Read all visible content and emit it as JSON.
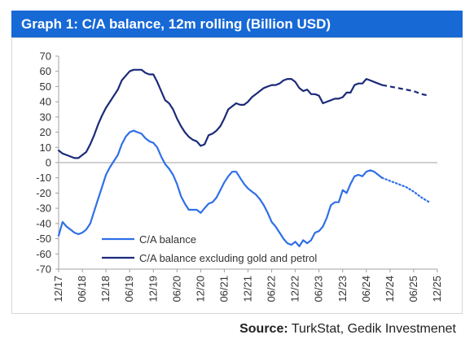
{
  "title": "Graph 1: C/A balance, 12m rolling (Billion USD)",
  "source_label": "Source:",
  "source_text": "TurkStat, Gedik Investmenet",
  "colors": {
    "title_bg": "#1769d6",
    "ca_balance": "#2f6fe8",
    "ca_ex_gold": "#1b2a78"
  },
  "chart_data": {
    "type": "line",
    "title": "Graph 1: C/A balance, 12m rolling (Billion USD)",
    "xlabel": "",
    "ylabel": "",
    "ylim": [
      -70,
      70
    ],
    "yticks": [
      70,
      60,
      50,
      40,
      30,
      20,
      10,
      0,
      -10,
      -20,
      -30,
      -40,
      -50,
      -60,
      -70
    ],
    "x_ticks": [
      "12/17",
      "06/18",
      "12/18",
      "06/19",
      "12/19",
      "06/20",
      "12/20",
      "06/21",
      "12/21",
      "06/22",
      "12/22",
      "06/23",
      "12/23",
      "06/24",
      "12/24",
      "06/25",
      "12/25"
    ],
    "x_unit": "months since 12/17",
    "grid": false,
    "legend": "bottom-center",
    "series": [
      {
        "name": "C/A balance",
        "style": "solid",
        "points": [
          [
            0,
            -48
          ],
          [
            1,
            -39
          ],
          [
            2,
            -42
          ],
          [
            3,
            -44
          ],
          [
            4,
            -46
          ],
          [
            5,
            -47
          ],
          [
            6,
            -46
          ],
          [
            7,
            -44
          ],
          [
            8,
            -40
          ],
          [
            9,
            -32
          ],
          [
            10,
            -24
          ],
          [
            11,
            -16
          ],
          [
            12,
            -8
          ],
          [
            13,
            -3
          ],
          [
            14,
            1
          ],
          [
            15,
            5
          ],
          [
            16,
            12
          ],
          [
            17,
            17
          ],
          [
            18,
            20
          ],
          [
            19,
            21
          ],
          [
            20,
            20
          ],
          [
            21,
            19
          ],
          [
            22,
            16
          ],
          [
            23,
            14
          ],
          [
            24,
            13
          ],
          [
            25,
            10
          ],
          [
            26,
            4
          ],
          [
            27,
            -1
          ],
          [
            28,
            -4
          ],
          [
            29,
            -8
          ],
          [
            30,
            -14
          ],
          [
            31,
            -22
          ],
          [
            32,
            -27
          ],
          [
            33,
            -31
          ],
          [
            34,
            -31
          ],
          [
            35,
            -31
          ],
          [
            36,
            -33
          ],
          [
            37,
            -30
          ],
          [
            38,
            -27
          ],
          [
            39,
            -26
          ],
          [
            40,
            -23
          ],
          [
            41,
            -18
          ],
          [
            42,
            -13
          ],
          [
            43,
            -9
          ],
          [
            44,
            -6
          ],
          [
            45,
            -6
          ],
          [
            46,
            -10
          ],
          [
            47,
            -14
          ],
          [
            48,
            -17
          ],
          [
            49,
            -19
          ],
          [
            50,
            -21
          ],
          [
            51,
            -24
          ],
          [
            52,
            -28
          ],
          [
            53,
            -33
          ],
          [
            54,
            -39
          ],
          [
            55,
            -42
          ],
          [
            56,
            -46
          ],
          [
            57,
            -50
          ],
          [
            58,
            -53
          ],
          [
            59,
            -54
          ],
          [
            60,
            -52
          ],
          [
            61,
            -55
          ],
          [
            62,
            -51
          ],
          [
            63,
            -53
          ],
          [
            64,
            -51
          ],
          [
            65,
            -46
          ],
          [
            66,
            -45
          ],
          [
            67,
            -42
          ],
          [
            68,
            -36
          ],
          [
            69,
            -28
          ],
          [
            70,
            -26
          ],
          [
            71,
            -26
          ],
          [
            72,
            -18
          ],
          [
            73,
            -20
          ],
          [
            74,
            -14
          ],
          [
            75,
            -9
          ],
          [
            76,
            -8
          ],
          [
            77,
            -9
          ],
          [
            78,
            -6
          ],
          [
            79,
            -5
          ],
          [
            80,
            -6
          ],
          [
            81,
            -8
          ],
          [
            82,
            -10
          ]
        ]
      },
      {
        "name": "C/A balance",
        "style": "dotted-forecast",
        "points": [
          [
            82,
            -10
          ],
          [
            84,
            -12
          ],
          [
            86,
            -14
          ],
          [
            88,
            -16
          ],
          [
            90,
            -19
          ],
          [
            92,
            -23
          ],
          [
            94,
            -26
          ]
        ]
      },
      {
        "name": "C/A balance excluding gold and petrol",
        "style": "solid",
        "points": [
          [
            0,
            8
          ],
          [
            1,
            6
          ],
          [
            2,
            5
          ],
          [
            3,
            4
          ],
          [
            4,
            3
          ],
          [
            5,
            3
          ],
          [
            6,
            5
          ],
          [
            7,
            7
          ],
          [
            8,
            12
          ],
          [
            9,
            18
          ],
          [
            10,
            25
          ],
          [
            11,
            31
          ],
          [
            12,
            36
          ],
          [
            13,
            40
          ],
          [
            14,
            44
          ],
          [
            15,
            48
          ],
          [
            16,
            54
          ],
          [
            17,
            57
          ],
          [
            18,
            60
          ],
          [
            19,
            61
          ],
          [
            20,
            61
          ],
          [
            21,
            61
          ],
          [
            22,
            59
          ],
          [
            23,
            58
          ],
          [
            24,
            58
          ],
          [
            25,
            53
          ],
          [
            26,
            47
          ],
          [
            27,
            41
          ],
          [
            28,
            39
          ],
          [
            29,
            35
          ],
          [
            30,
            29
          ],
          [
            31,
            24
          ],
          [
            32,
            20
          ],
          [
            33,
            17
          ],
          [
            34,
            15
          ],
          [
            35,
            14
          ],
          [
            36,
            11
          ],
          [
            37,
            12
          ],
          [
            38,
            18
          ],
          [
            39,
            19
          ],
          [
            40,
            21
          ],
          [
            41,
            24
          ],
          [
            42,
            29
          ],
          [
            43,
            35
          ],
          [
            44,
            37
          ],
          [
            45,
            39
          ],
          [
            46,
            38
          ],
          [
            47,
            38
          ],
          [
            48,
            40
          ],
          [
            49,
            43
          ],
          [
            50,
            45
          ],
          [
            51,
            47
          ],
          [
            52,
            49
          ],
          [
            53,
            50
          ],
          [
            54,
            51
          ],
          [
            55,
            51
          ],
          [
            56,
            52
          ],
          [
            57,
            54
          ],
          [
            58,
            55
          ],
          [
            59,
            55
          ],
          [
            60,
            53
          ],
          [
            61,
            49
          ],
          [
            62,
            47
          ],
          [
            63,
            48
          ],
          [
            64,
            45
          ],
          [
            65,
            45
          ],
          [
            66,
            44
          ],
          [
            67,
            39
          ],
          [
            68,
            40
          ],
          [
            69,
            41
          ],
          [
            70,
            42
          ],
          [
            71,
            42
          ],
          [
            72,
            43
          ],
          [
            73,
            46
          ],
          [
            74,
            46
          ],
          [
            75,
            51
          ],
          [
            76,
            52
          ],
          [
            77,
            52
          ],
          [
            78,
            55
          ],
          [
            79,
            54
          ],
          [
            80,
            53
          ],
          [
            81,
            52
          ],
          [
            82,
            51
          ]
        ]
      },
      {
        "name": "C/A balance excluding gold and petrol",
        "style": "dashed-forecast",
        "points": [
          [
            82,
            51
          ],
          [
            84,
            50
          ],
          [
            86,
            49
          ],
          [
            88,
            48
          ],
          [
            90,
            47
          ],
          [
            92,
            45
          ],
          [
            94,
            44
          ]
        ]
      }
    ]
  }
}
